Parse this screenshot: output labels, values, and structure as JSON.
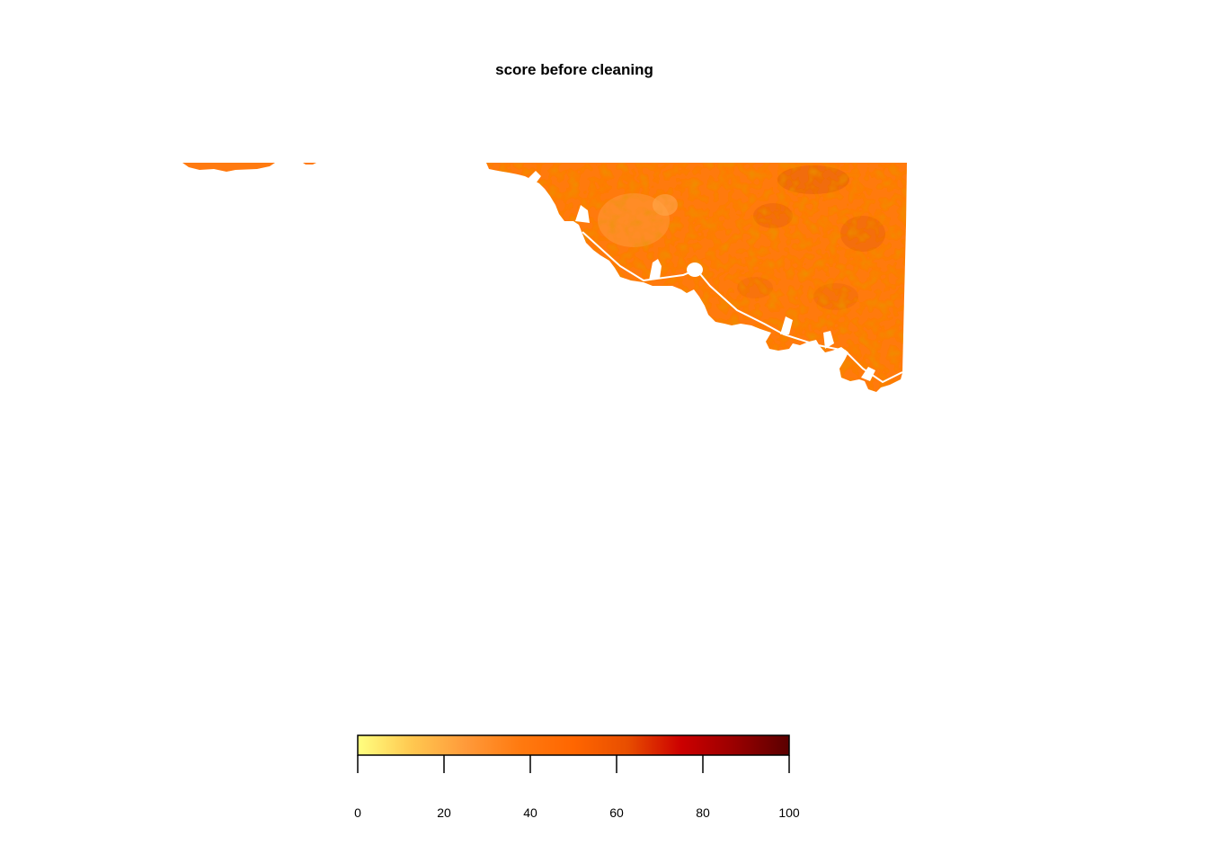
{
  "title": "score before cleaning",
  "legend": {
    "min": 0,
    "max": 100,
    "ticks": [
      "0",
      "20",
      "40",
      "60",
      "80",
      "100"
    ],
    "colors": [
      "#FFFF80",
      "#FFC850",
      "#FF9A3A",
      "#FF7A10",
      "#FF6600",
      "#E84E00",
      "#CC0000",
      "#990000",
      "#5A0000"
    ]
  },
  "map": {
    "fill_color": "#FF7A10",
    "dark_color": "#E05A00",
    "light_color": "#FFA040"
  }
}
